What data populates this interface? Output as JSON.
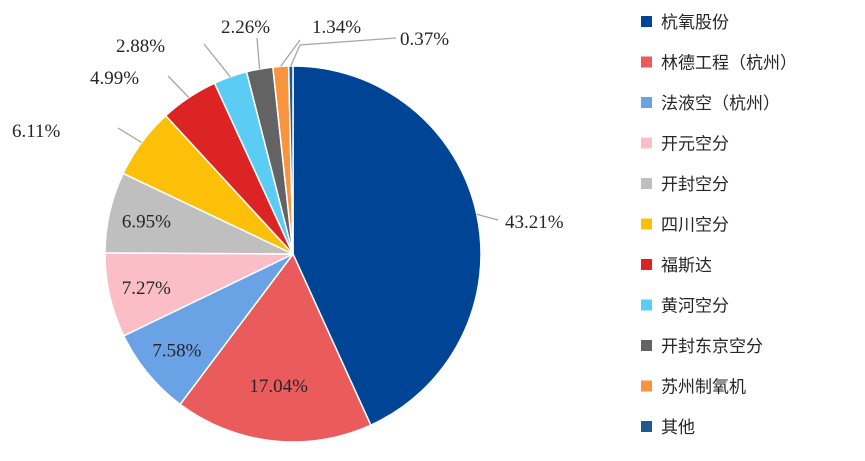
{
  "chart_data": {
    "type": "pie",
    "slices": [
      {
        "label": "杭氧股份",
        "value": 43.21,
        "value_label": "43.21%",
        "color": "#004595"
      },
      {
        "label": "林德工程（杭州）",
        "value": 17.04,
        "value_label": "17.04%",
        "color": "#ea5b5c"
      },
      {
        "label": "法液空（杭州）",
        "value": 7.58,
        "value_label": "7.58%",
        "color": "#69a2e5"
      },
      {
        "label": "开元空分",
        "value": 7.27,
        "value_label": "7.27%",
        "color": "#fbbdc6"
      },
      {
        "label": "开封空分",
        "value": 6.95,
        "value_label": "6.95%",
        "color": "#bfbfbf"
      },
      {
        "label": "四川空分",
        "value": 6.11,
        "value_label": "6.11%",
        "color": "#fdc008"
      },
      {
        "label": "福斯达",
        "value": 4.99,
        "value_label": "4.99%",
        "color": "#dc2424"
      },
      {
        "label": "黄河空分",
        "value": 2.88,
        "value_label": "2.88%",
        "color": "#5bcdf5"
      },
      {
        "label": "开封东京空分",
        "value": 2.26,
        "value_label": "2.26%",
        "color": "#636363"
      },
      {
        "label": "苏州制氧机",
        "value": 1.34,
        "value_label": "1.34%",
        "color": "#f7943d"
      },
      {
        "label": "其他",
        "value": 0.37,
        "value_label": "0.37%",
        "color": "#1e5b8c"
      }
    ],
    "legend_position": "right",
    "start_angle": "12 o'clock",
    "direction": "clockwise"
  }
}
